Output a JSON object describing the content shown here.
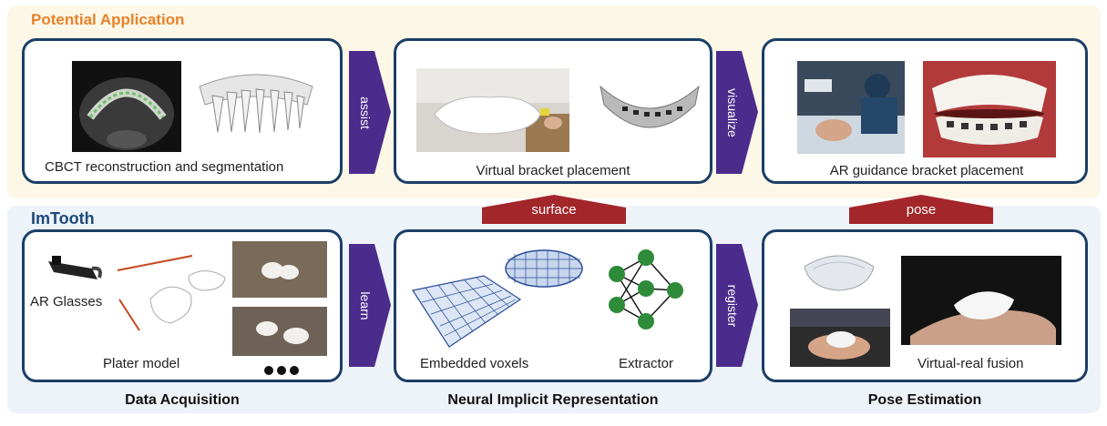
{
  "top_section": {
    "title": "Potential Application"
  },
  "bottom_section": {
    "title": "ImTooth"
  },
  "panels": {
    "cbct": {
      "caption": "CBCT reconstruction and segmentation"
    },
    "virtual_bracket": {
      "caption": "Virtual bracket placement"
    },
    "ar_guidance": {
      "caption": "AR guidance bracket placement"
    },
    "data_acquisition": {
      "ar_glasses": "AR Glasses",
      "plater_model": "Plater model"
    },
    "neural": {
      "voxels": "Embedded voxels",
      "extractor": "Extractor"
    },
    "pose": {
      "fusion": "Virtual-real fusion"
    }
  },
  "arrows": {
    "assist": "assist",
    "visualize": "visualize",
    "learn": "learn",
    "register": "register",
    "surface": "surface",
    "pose": "pose"
  },
  "footer": {
    "data_acquisition": "Data Acquisition",
    "neural_implicit": "Neural Implicit Representation",
    "pose_estimation": "Pose Estimation"
  },
  "colors": {
    "panel_border": "#1b3f66",
    "arrow_purple": "#4b2c8c",
    "arrow_red": "#a3262a",
    "orange_title": "#e8822a",
    "blue_title": "#1d4a7a"
  }
}
